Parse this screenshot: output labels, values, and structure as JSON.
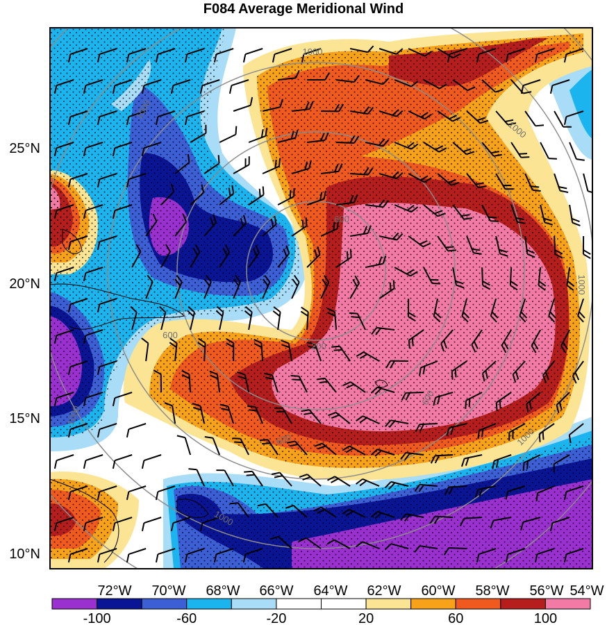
{
  "title": "F084 Average Meridional Wind",
  "map": {
    "lon_ticks": [
      "72°W",
      "70°W",
      "68°W",
      "66°W",
      "64°W",
      "62°W",
      "60°W",
      "58°W",
      "56°W",
      "54°W"
    ],
    "lat_ticks": [
      "25°N",
      "20°N",
      "15°N",
      "10°N"
    ],
    "range_ring_labels": [
      "200",
      "600",
      "600",
      "600",
      "600",
      "1000",
      "1000",
      "1000",
      "1000",
      "1000",
      "1000",
      "1000"
    ],
    "colors": {
      "purple": "#9b30d0",
      "navy": "#0a1596",
      "blue": "#3c5fd6",
      "cyan": "#1cb4ee",
      "light_blue": "#a8dcf7",
      "white": "#ffffff",
      "light_yellow": "#fbe594",
      "orange": "#f8a21a",
      "red_orange": "#f05a1e",
      "dark_red": "#b61e1e",
      "pink": "#f47aa6"
    }
  },
  "colorbar": {
    "labels": [
      "-100",
      "-60",
      "-20",
      "20",
      "60",
      "100"
    ],
    "colors": [
      "#9b30d0",
      "#0a1596",
      "#3c5fd6",
      "#1cb4ee",
      "#a8dcf7",
      "#ffffff",
      "#ffffff",
      "#fbe594",
      "#f8a21a",
      "#f05a1e",
      "#b61e1e",
      "#f47aa6"
    ]
  }
}
